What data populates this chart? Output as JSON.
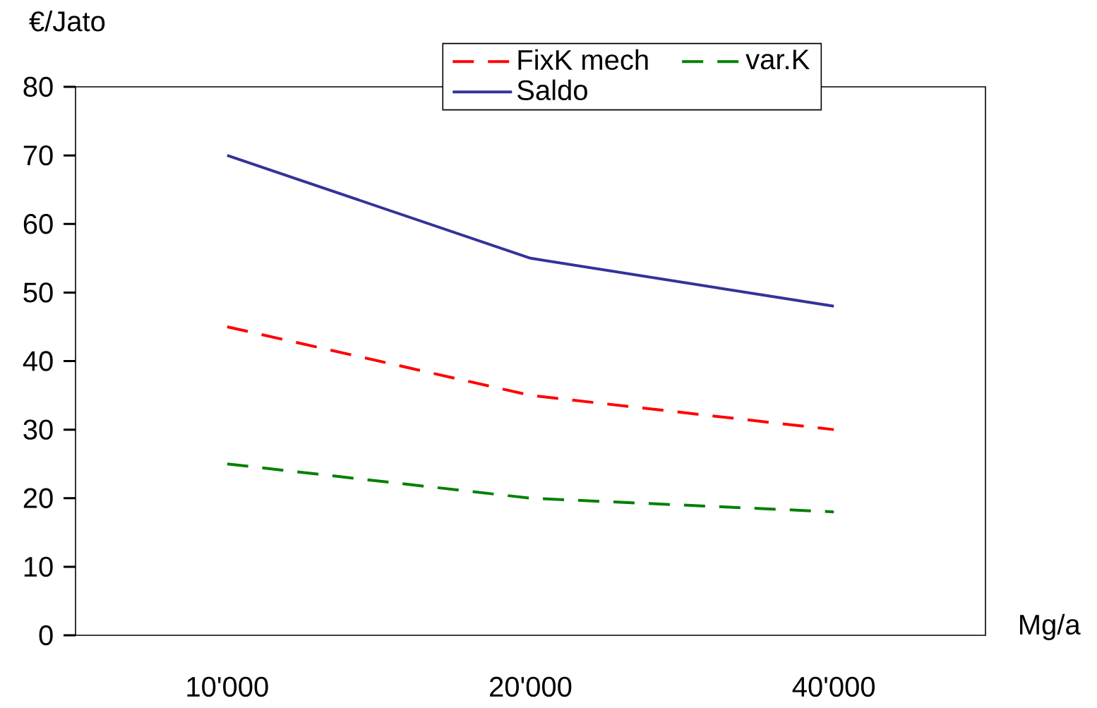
{
  "chart_data": {
    "type": "line",
    "xlabel": "Mg/a",
    "ylabel": "€/Jato",
    "categories": [
      "10'000",
      "20'000",
      "40'000"
    ],
    "ylim": [
      0,
      80
    ],
    "yticks": [
      0,
      10,
      20,
      30,
      40,
      50,
      60,
      70,
      80
    ],
    "legend": "top right",
    "series": [
      {
        "name": "FixK mech",
        "color": "#ff0000",
        "line_style": "dashed",
        "values": [
          45,
          35,
          30
        ]
      },
      {
        "name": "var.K",
        "color": "#008000",
        "line_style": "dashed",
        "values": [
          25,
          20,
          18
        ]
      },
      {
        "name": "Saldo",
        "color": "#333399",
        "line_style": "solid",
        "values": [
          70,
          55,
          48
        ]
      }
    ]
  }
}
